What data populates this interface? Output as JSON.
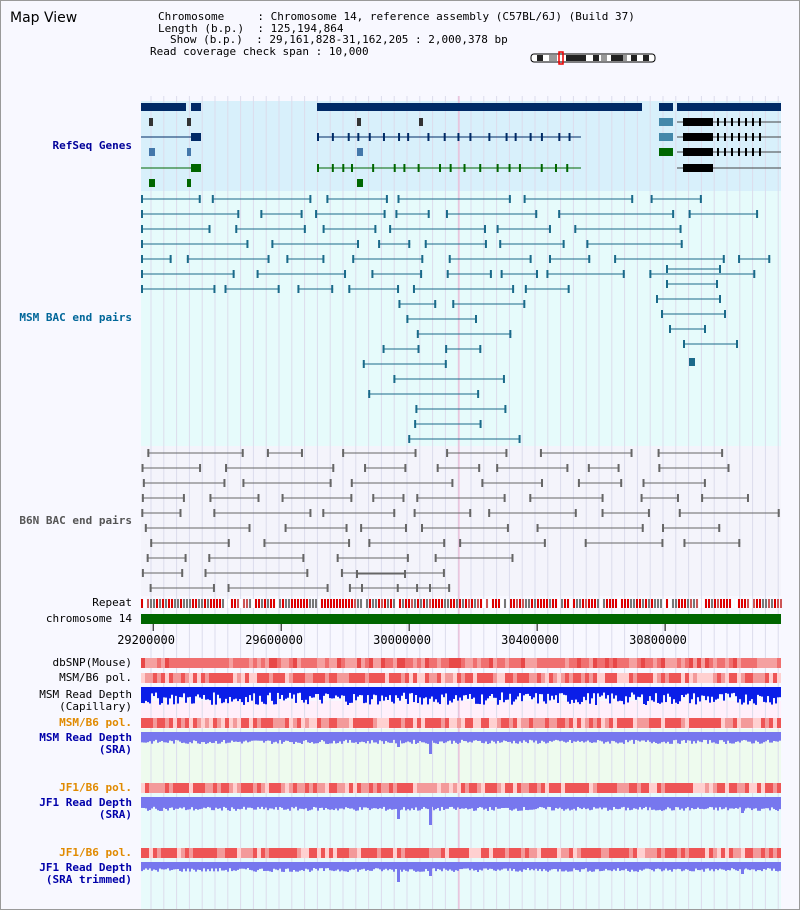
{
  "panel_title": "Map View",
  "info": {
    "chromosome_key": "Chromosome",
    "chromosome_val": "Chromosome 14, reference assembly (C57BL/6J) (Build 37)",
    "length_key": "Length (b.p.)",
    "length_val": "125,194,864",
    "show_key": "Show (b.p.)",
    "show_val": "29,161,828-31,162,205 : 2,000,378 bp",
    "coverage_key": "Read coverage check span",
    "coverage_val": "10,000"
  },
  "tracks": {
    "refseq": {
      "label": "RefSeq Genes",
      "color": "#000099"
    },
    "msm_bac": {
      "label": "MSM BAC end pairs",
      "color": "#006699"
    },
    "b6n_bac": {
      "label": "B6N BAC end pairs",
      "color": "#555555"
    },
    "repeat": {
      "label": "Repeat"
    },
    "chrom": {
      "label": "chromosome 14"
    },
    "dbsnp": {
      "label": "dbSNP(Mouse)"
    },
    "msm_b6_pol_1": {
      "label": "MSM/B6 pol."
    },
    "msm_read_cap": {
      "label1": "MSM Read Depth",
      "label2": "(Capillary)"
    },
    "msm_b6_pol_2": {
      "label": "MSM/B6 pol.",
      "color": "#e08a00"
    },
    "msm_read_sra": {
      "label1": "MSM Read Depth",
      "label2": "(SRA)",
      "color": "#0000aa"
    },
    "jf1_b6_pol_1": {
      "label": "JF1/B6 pol.",
      "color": "#e08a00"
    },
    "jf1_read_sra": {
      "label1": "JF1 Read Depth",
      "label2": "(SRA)",
      "color": "#0000aa"
    },
    "jf1_b6_pol_2": {
      "label": "JF1/B6 pol.",
      "color": "#e08a00"
    },
    "jf1_read_trim": {
      "label1": "JF1 Read Depth",
      "label2": "(SRA trimmed)",
      "color": "#0000aa"
    }
  },
  "axis": {
    "ticks": [
      {
        "label": "29200000",
        "value": 29200000
      },
      {
        "label": "29600000",
        "value": 29600000
      },
      {
        "label": "30000000",
        "value": 30000000
      },
      {
        "label": "30400000",
        "value": 30400000
      },
      {
        "label": "30800000",
        "value": 30800000
      }
    ],
    "range_start": 29161828,
    "range_end": 31162205
  },
  "colors": {
    "refseq_bg": "#d8f0fb",
    "bac_bg": "#e6fbfb",
    "b6n_bg": "#f4f4fb",
    "refseq_gene": "#002a66",
    "refseq_green": "#006600",
    "msm_line": "#1a6a8a",
    "b6n_line": "#666666",
    "read_blue": "#0a1ee8",
    "sra_blue": "#7777ee",
    "chrom_green": "#006600"
  }
}
